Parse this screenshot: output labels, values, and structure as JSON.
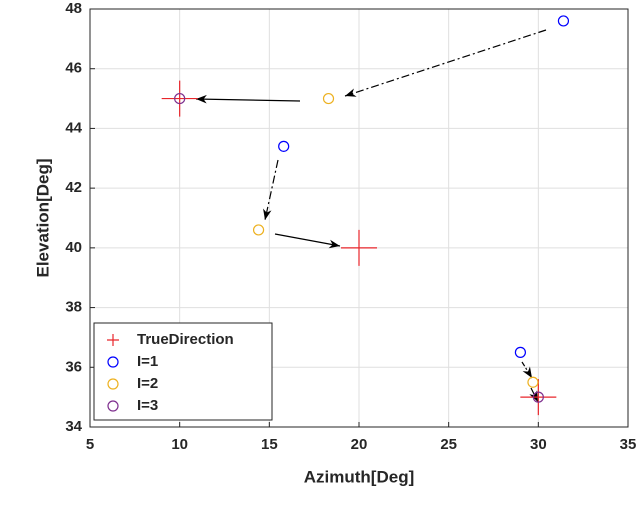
{
  "chart_data": {
    "type": "scatter",
    "xlabel": "Azimuth[Deg]",
    "ylabel": "Elevation[Deg]",
    "xlim": [
      5,
      35
    ],
    "xticks": [
      5,
      10,
      15,
      20,
      25,
      30,
      35
    ],
    "ylim": [
      34,
      48
    ],
    "yticks": [
      34,
      36,
      38,
      40,
      42,
      44,
      46,
      48
    ],
    "grid": true,
    "legend": "lower left",
    "series": [
      {
        "name": "TrueDirection",
        "color": "#e8262b",
        "marker": "plus",
        "x": [
          10,
          20,
          30
        ],
        "values": [
          45,
          40,
          35
        ]
      },
      {
        "name": "I=1",
        "color": "#0000ff",
        "marker": "circle",
        "x": [
          31.4,
          15.8,
          29.0
        ],
        "values": [
          47.6,
          43.4,
          36.5
        ]
      },
      {
        "name": "I=2",
        "color": "#edb120",
        "marker": "circle",
        "x": [
          18.3,
          14.4,
          29.7
        ],
        "values": [
          45.0,
          40.6,
          35.5
        ]
      },
      {
        "name": "I=3",
        "color": "#7e2f8e",
        "marker": "circle",
        "x": [
          10,
          30
        ],
        "values": [
          45,
          35
        ]
      }
    ]
  }
}
